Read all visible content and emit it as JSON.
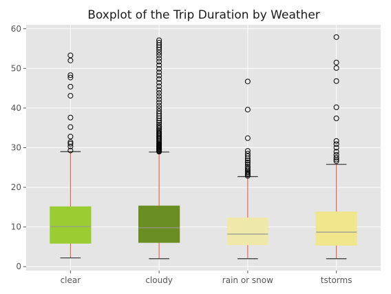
{
  "chart_data": {
    "type": "box",
    "title": "Boxplot of the Trip Duration by Weather",
    "xlabel": "",
    "ylabel": "",
    "categories": [
      "clear",
      "cloudy",
      "rain or snow",
      "tstorms"
    ],
    "ylim": [
      -1,
      61
    ],
    "yticks": [
      "0",
      "10",
      "20",
      "30",
      "40",
      "50",
      "60"
    ],
    "grid": true,
    "colors": {
      "plot_bg": "#e5e5e5",
      "grid": "#ffffff",
      "whisker": "#e24a33",
      "median": "#999999",
      "cap": "#333333",
      "flier": "#000000"
    },
    "boxes": [
      {
        "category": "clear",
        "whislo": 2.2,
        "q1": 5.9,
        "med": 10.1,
        "q3": 15.1,
        "whishi": 29.0,
        "color": "#9acd32",
        "fliers": [
          29.3,
          30.3,
          31.0,
          31.4,
          32.8,
          35.2,
          37.6,
          43.1,
          45.4,
          47.7,
          48.3,
          52.0,
          53.3
        ]
      },
      {
        "category": "cloudy",
        "whislo": 2.0,
        "q1": 6.1,
        "med": 9.8,
        "q3": 15.3,
        "whishi": 28.9,
        "color": "#6b8e23",
        "fliers": [
          29.0,
          29.2,
          29.4,
          29.6,
          29.8,
          30.0,
          30.2,
          30.4,
          30.6,
          30.8,
          31.0,
          31.3,
          31.6,
          31.9,
          32.2,
          32.5,
          32.8,
          33.1,
          33.4,
          33.7,
          34.0,
          34.3,
          34.6,
          35.0,
          35.4,
          35.8,
          36.3,
          36.8,
          37.4,
          38.0,
          38.6,
          39.2,
          39.9,
          40.6,
          41.4,
          42.2,
          43.0,
          43.8,
          44.6,
          45.5,
          46.4,
          47.3,
          48.2,
          49.0,
          49.9,
          50.8,
          51.7,
          52.5,
          53.3,
          54.0,
          54.7,
          55.3,
          55.9,
          56.5,
          57.1
        ]
      },
      {
        "category": "rain or snow",
        "whislo": 2.0,
        "q1": 5.5,
        "med": 8.2,
        "q3": 12.3,
        "whishi": 22.7,
        "color": "#eee8aa",
        "fliers": [
          22.9,
          23.2,
          23.5,
          23.8,
          24.1,
          24.5,
          24.9,
          25.3,
          25.8,
          26.3,
          26.8,
          27.3,
          27.9,
          28.5,
          29.2,
          32.4,
          39.6,
          46.7
        ]
      },
      {
        "category": "tstorms",
        "whislo": 2.0,
        "q1": 5.4,
        "med": 8.7,
        "q3": 13.8,
        "whishi": 25.8,
        "color": "#f0e68c",
        "fliers": [
          26.6,
          27.0,
          27.5,
          28.2,
          29.0,
          30.0,
          30.9,
          31.7,
          37.4,
          40.2,
          46.8,
          50.1,
          51.5,
          57.9
        ]
      }
    ]
  }
}
